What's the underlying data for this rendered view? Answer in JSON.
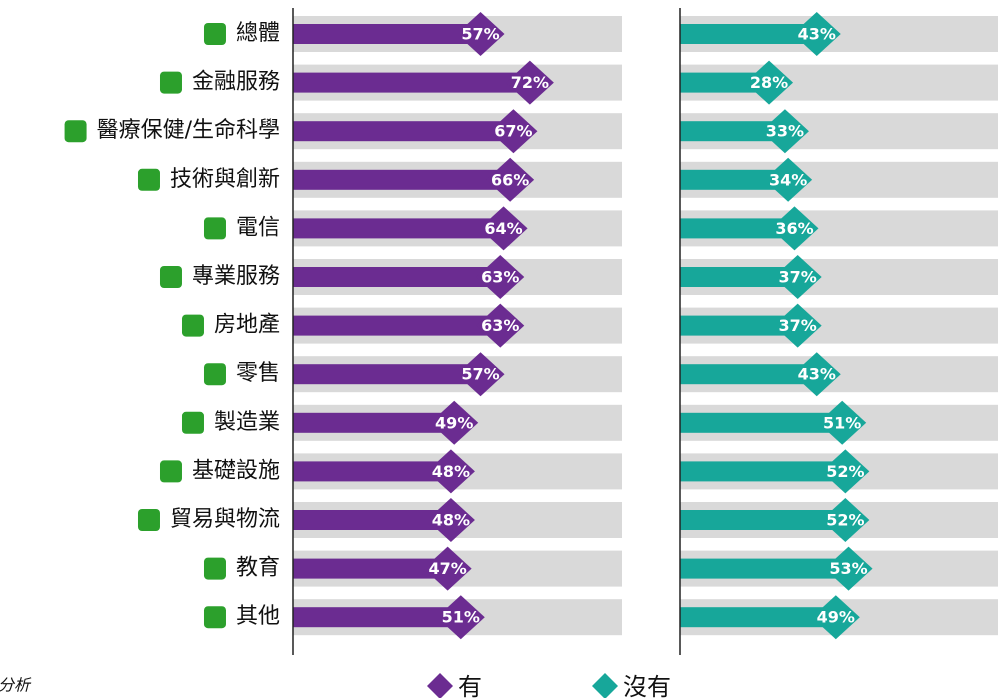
{
  "chart_data": {
    "type": "bar",
    "categories": [
      "總體",
      "金融服務",
      "醫療保健/生命科學",
      "技術與創新",
      "電信",
      "專業服務",
      "房地產",
      "零售",
      "製造業",
      "基礎設施",
      "貿易與物流",
      "教育",
      "其他"
    ],
    "series": [
      {
        "name": "有",
        "color": "#6b2c91",
        "values": [
          57,
          72,
          67,
          66,
          64,
          63,
          63,
          57,
          49,
          48,
          48,
          47,
          51
        ],
        "value_labels": [
          "57%",
          "72%",
          "67%",
          "66%",
          "64%",
          "63%",
          "63%",
          "57%",
          "49%",
          "48%",
          "48%",
          "47%",
          "51%"
        ]
      },
      {
        "name": "沒有",
        "color": "#17a79a",
        "values": [
          43,
          28,
          33,
          34,
          36,
          37,
          37,
          43,
          51,
          52,
          52,
          53,
          49
        ],
        "value_labels": [
          "43%",
          "28%",
          "33%",
          "34%",
          "36%",
          "37%",
          "37%",
          "43%",
          "51%",
          "52%",
          "52%",
          "53%",
          "49%"
        ]
      }
    ],
    "xlim": [
      0,
      100
    ],
    "background_color": "#d9d9d9",
    "icon_color": "#2ca02c",
    "note": "分析"
  }
}
